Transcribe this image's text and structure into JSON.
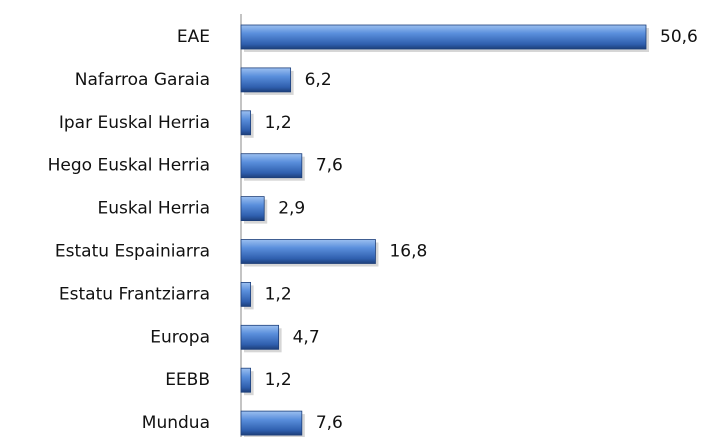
{
  "chart_data": {
    "type": "hbar",
    "categories": [
      "EAE",
      "Nafarroa Garaia",
      "Ipar Euskal Herria",
      "Hego Euskal Herria",
      "Euskal Herria",
      "Estatu Espainiarra",
      "Estatu Frantziarra",
      "Europa",
      "EEBB",
      "Mundua"
    ],
    "values": [
      50.6,
      6.2,
      1.2,
      7.6,
      2.9,
      16.8,
      1.2,
      4.7,
      1.2,
      7.6
    ],
    "value_labels": [
      "50,6",
      "6,2",
      "1,2",
      "7,6",
      "2,9",
      "16,8",
      "1,2",
      "4,7",
      "1,2",
      "7,6"
    ],
    "color": "#3f73c8"
  }
}
